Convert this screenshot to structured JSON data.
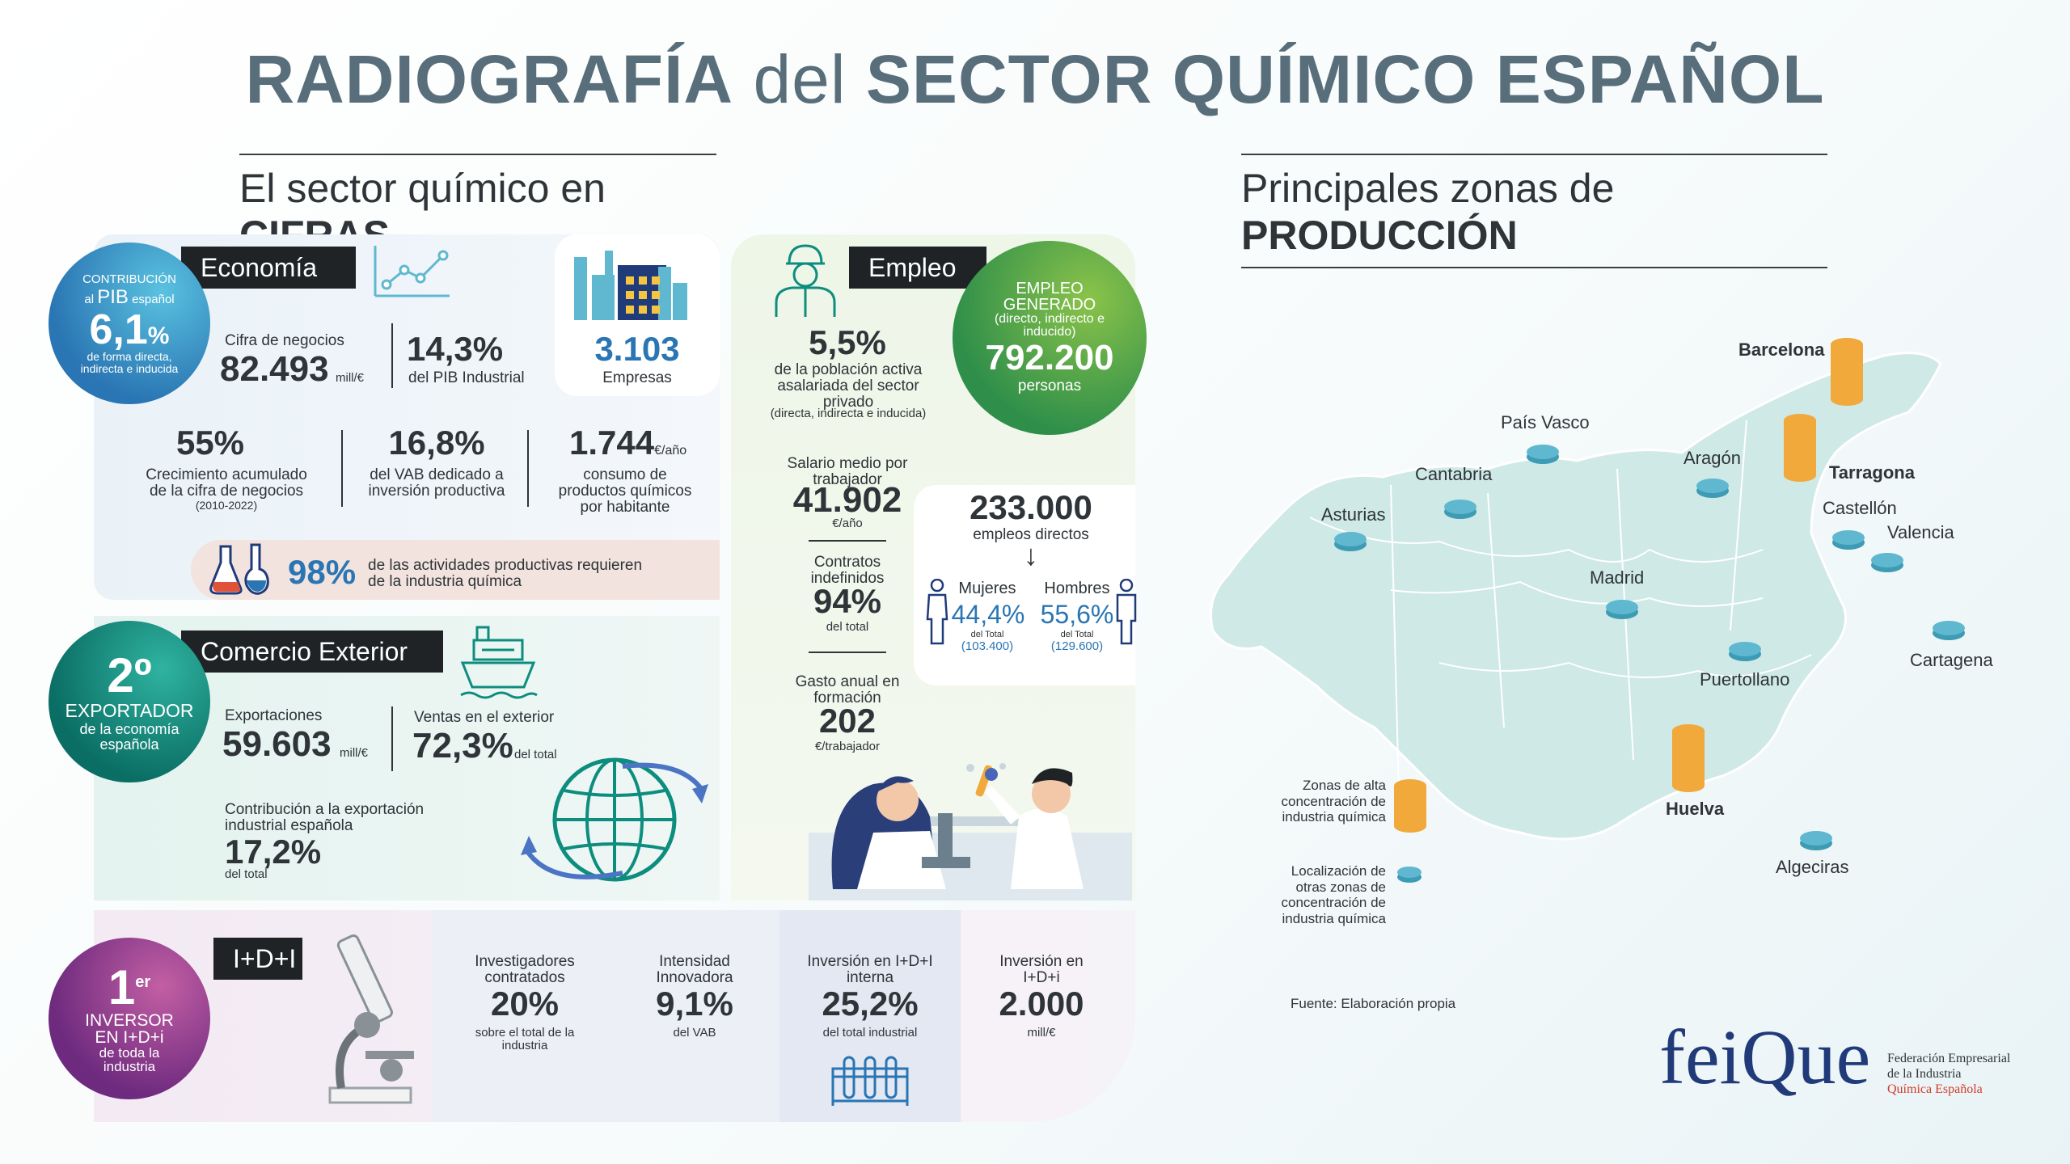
{
  "title": {
    "part1": "RADIOGRAFÍA",
    "part2": "del",
    "part3": "SECTOR QUÍMICO ESPAÑOL"
  },
  "left_section": {
    "title_light": "El sector químico en",
    "title_bold": "CIFRAS"
  },
  "right_section": {
    "title_light": "Principales zonas de",
    "title_bold": "PRODUCCIÓN"
  },
  "economia": {
    "label": "Economía",
    "pib_circle": {
      "line1": "CONTRIBUCIÓN",
      "line2a": "al",
      "line2b": "PIB",
      "line2c": "español",
      "value": "6,1",
      "unit": "%",
      "line3": "de forma directa, indirecta e inducida"
    },
    "cifra_negocios": {
      "label": "Cifra de negocios",
      "value": "82.493",
      "unit": "mill/€"
    },
    "pib_industrial": {
      "value": "14,3%",
      "label": "del PIB Industrial"
    },
    "empresas": {
      "value": "3.103",
      "label": "Empresas"
    },
    "crecimiento": {
      "value": "55%",
      "label": "Crecimiento acumulado de la cifra de negocios",
      "sub": "(2010-2022)"
    },
    "vab": {
      "value": "16,8%",
      "label": "del VAB dedicado a inversión productiva"
    },
    "consumo": {
      "value": "1.744",
      "unit": "€/año",
      "label": "consumo de productos químicos por habitante"
    },
    "actividades": {
      "value": "98%",
      "label": "de las actividades productivas requieren de la industria química"
    }
  },
  "comercio": {
    "label": "Comercio Exterior",
    "circle": {
      "value": "2º",
      "line1": "EXPORTADOR",
      "line2": "de la economía española"
    },
    "exportaciones": {
      "label": "Exportaciones",
      "value": "59.603",
      "unit": "mill/€"
    },
    "ventas": {
      "label": "Ventas en el exterior",
      "value": "72,3%",
      "unit": "del total"
    },
    "contribucion": {
      "label": "Contribución a la exportación industrial española",
      "value": "17,2%",
      "unit": "del total"
    }
  },
  "empleo": {
    "label": "Empleo",
    "poblacion": {
      "value": "5,5%",
      "label": "de la población activa asalariada del sector privado",
      "sub": "(directa, indirecta e inducida)"
    },
    "generado": {
      "line1": "EMPLEO GENERADO",
      "line2": "(directo, indirecto e inducido)",
      "value": "792.200",
      "unit": "personas"
    },
    "salario": {
      "label": "Salario medio por trabajador",
      "value": "41.902",
      "unit": "€/año"
    },
    "directos": {
      "value": "233.000",
      "label": "empleos directos",
      "arrow": "↓"
    },
    "mujeres": {
      "label": "Mujeres",
      "value": "44,4%",
      "sub1": "del Total",
      "sub2": "(103.400)"
    },
    "hombres": {
      "label": "Hombres",
      "value": "55,6%",
      "sub1": "del Total",
      "sub2": "(129.600)"
    },
    "contratos": {
      "label": "Contratos indefinidos",
      "value": "94%",
      "unit": "del total"
    },
    "gasto": {
      "label": "Gasto anual en formación",
      "value": "202",
      "unit": "€/trabajador"
    }
  },
  "idi": {
    "label": "I+D+I",
    "circle": {
      "value": "1",
      "sup": "er",
      "line1": "INVERSOR",
      "line2": "EN I+D+i",
      "line3": "de toda la industria"
    },
    "investigadores": {
      "label": "Investigadores contratados",
      "value": "20%",
      "unit": "sobre el total de la industria"
    },
    "intensidad": {
      "label": "Intensidad Innovadora",
      "value": "9,1%",
      "unit": "del VAB"
    },
    "inversion_interna": {
      "label": "Inversión en I+D+I interna",
      "value": "25,2%",
      "unit": "del total industrial"
    },
    "inversion": {
      "label": "Inversión en I+D+i",
      "value": "2.000",
      "unit": "mill/€"
    }
  },
  "map": {
    "cities": {
      "barcelona": "Barcelona",
      "tarragona": "Tarragona",
      "pais_vasco": "País Vasco",
      "aragon": "Aragón",
      "cantabria": "Cantabria",
      "asturias": "Asturias",
      "castellon": "Castellón",
      "valencia": "Valencia",
      "madrid": "Madrid",
      "cartagena": "Cartagena",
      "puertollano": "Puertollano",
      "huelva": "Huelva",
      "algeciras": "Algeciras"
    },
    "legend_high": "Zonas de alta concentración de industria química",
    "legend_other": "Localización de otras zonas de concentración de industria química",
    "source": "Fuente: Elaboración propia"
  },
  "logo": {
    "text": "feiQue",
    "line1": "Federación Empresarial",
    "line2": "de la Industria",
    "line3": "Química Española"
  },
  "colors": {
    "title": "#596e7b",
    "accent_blue": "#2a75b3",
    "teal": "#0d8d7e",
    "green": "#58a944",
    "purple": "#8a3f8f",
    "orange": "#f0a93a",
    "logo_red": "#d23c2b",
    "logo_navy": "#213a7a"
  }
}
